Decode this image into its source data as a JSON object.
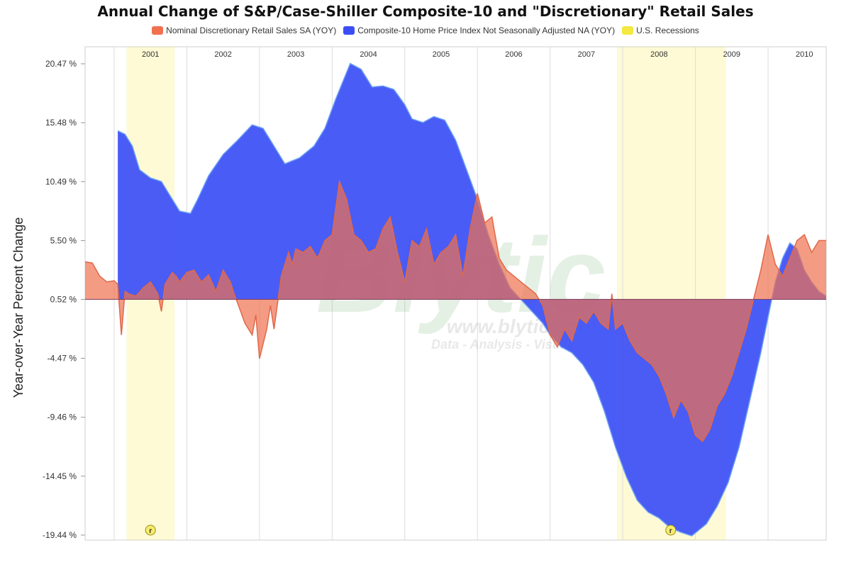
{
  "chart_data": {
    "type": "area",
    "title": "Annual Change of S&P/Case-Shiller Composite-10 and \"Discretionary\" Retail Sales",
    "ylabel": "Year-over-Year Percent Change",
    "ylim": [
      -19.44,
      20.47
    ],
    "ytick_labels": [
      "20.47 %",
      "15.48 %",
      "10.49 %",
      "5.50 %",
      "0.52 %",
      "-4.47 %",
      "-9.46 %",
      "-14.45 %",
      "-19.44 %"
    ],
    "ytick_values": [
      20.47,
      15.48,
      10.49,
      5.5,
      0.52,
      -4.47,
      -9.46,
      -14.45,
      -19.44
    ],
    "baseline": 0.52,
    "xlim": [
      2000.6,
      2010.8
    ],
    "year_labels": [
      "2001",
      "2002",
      "2003",
      "2004",
      "2005",
      "2006",
      "2007",
      "2008",
      "2009",
      "2010"
    ],
    "year_label_positions": [
      2001.5,
      2002.5,
      2003.5,
      2004.5,
      2005.5,
      2006.5,
      2007.5,
      2008.5,
      2009.5,
      2010.5
    ],
    "legend": [
      {
        "label": "Nominal Discretionary Retail Sales SA (YOY)",
        "color": "#f07050"
      },
      {
        "label": "Composite-10 Home Price Index Not Seasonally Adjusted NA (YOY)",
        "color": "#3b4ef5"
      },
      {
        "label": "U.S. Recessions",
        "color": "#f5e840"
      }
    ],
    "recessions": [
      {
        "start": 2001.17,
        "end": 2001.83
      },
      {
        "start": 2007.92,
        "end": 2009.42
      }
    ],
    "recession_markers": [
      {
        "label": "r",
        "x": 2001.5
      },
      {
        "label": "r",
        "x": 2008.66
      }
    ],
    "series": [
      {
        "name": "Nominal Discretionary Retail Sales SA (YOY)",
        "color": "#f07050",
        "x": [
          2000.6,
          2000.7,
          2000.8,
          2000.9,
          2001.0,
          2001.05,
          2001.1,
          2001.15,
          2001.2,
          2001.3,
          2001.4,
          2001.5,
          2001.6,
          2001.65,
          2001.7,
          2001.8,
          2001.85,
          2001.9,
          2002.0,
          2002.1,
          2002.2,
          2002.3,
          2002.4,
          2002.5,
          2002.6,
          2002.65,
          2002.7,
          2002.8,
          2002.9,
          2002.95,
          2003.0,
          2003.1,
          2003.15,
          2003.2,
          2003.3,
          2003.4,
          2003.45,
          2003.5,
          2003.6,
          2003.7,
          2003.8,
          2003.9,
          2004.0,
          2004.1,
          2004.2,
          2004.3,
          2004.4,
          2004.5,
          2004.6,
          2004.7,
          2004.8,
          2004.9,
          2005.0,
          2005.1,
          2005.2,
          2005.3,
          2005.4,
          2005.5,
          2005.6,
          2005.7,
          2005.8,
          2005.9,
          2006.0,
          2006.1,
          2006.2,
          2006.3,
          2006.4,
          2006.5,
          2006.6,
          2006.7,
          2006.8,
          2006.9,
          2007.0,
          2007.1,
          2007.2,
          2007.3,
          2007.4,
          2007.5,
          2007.6,
          2007.7,
          2007.8,
          2007.85,
          2007.9,
          2008.0,
          2008.1,
          2008.2,
          2008.3,
          2008.4,
          2008.5,
          2008.6,
          2008.7,
          2008.8,
          2008.9,
          2009.0,
          2009.1,
          2009.2,
          2009.3,
          2009.4,
          2009.5,
          2009.6,
          2009.7,
          2009.8,
          2009.9,
          2010.0,
          2010.1,
          2010.2,
          2010.3,
          2010.4,
          2010.5,
          2010.6,
          2010.7,
          2010.8
        ],
        "values": [
          3.7,
          3.6,
          2.5,
          2.0,
          2.1,
          1.8,
          -2.5,
          1.2,
          1.0,
          0.8,
          1.5,
          2.0,
          1.0,
          -0.5,
          1.8,
          2.8,
          2.5,
          2.0,
          2.8,
          3.0,
          2.0,
          2.6,
          1.2,
          3.0,
          2.0,
          1.0,
          0.2,
          -1.5,
          -2.5,
          -0.8,
          -4.5,
          -2.0,
          0.0,
          -2.0,
          2.5,
          4.5,
          3.5,
          4.8,
          4.5,
          5.0,
          4.0,
          5.5,
          6.0,
          10.5,
          9.0,
          6.0,
          5.5,
          4.5,
          4.8,
          6.5,
          7.5,
          4.5,
          2.0,
          5.5,
          5.0,
          6.5,
          3.5,
          4.5,
          5.0,
          6.0,
          2.5,
          6.5,
          9.5,
          7.0,
          7.5,
          4.0,
          3.0,
          2.5,
          2.0,
          1.5,
          1.0,
          0.0,
          -2.5,
          -3.5,
          -2.0,
          -3.0,
          -1.0,
          -1.5,
          -0.5,
          -1.5,
          -2.0,
          1.0,
          -2.0,
          -1.5,
          -3.0,
          -4.0,
          -4.5,
          -5.0,
          -6.0,
          -7.5,
          -9.5,
          -8.0,
          -9.0,
          -11.0,
          -11.5,
          -10.5,
          -8.5,
          -7.5,
          -6.0,
          -4.0,
          -2.0,
          0.5,
          3.0,
          6.0,
          3.5,
          2.5,
          4.0,
          5.5,
          6.0,
          4.5,
          5.5,
          5.5
        ]
      },
      {
        "name": "Composite-10 Home Price Index Not Seasonally Adjusted NA (YOY)",
        "color": "#3b4ef5",
        "x": [
          2001.05,
          2001.15,
          2001.25,
          2001.35,
          2001.5,
          2001.65,
          2001.75,
          2001.9,
          2002.05,
          2002.15,
          2002.3,
          2002.5,
          2002.7,
          2002.9,
          2003.05,
          2003.2,
          2003.35,
          2003.55,
          2003.75,
          2003.9,
          2004.05,
          2004.15,
          2004.25,
          2004.4,
          2004.55,
          2004.7,
          2004.85,
          2005.0,
          2005.1,
          2005.25,
          2005.4,
          2005.55,
          2005.7,
          2005.85,
          2006.0,
          2006.15,
          2006.3,
          2006.45,
          2006.6,
          2006.75,
          2006.9,
          2007.0,
          2007.15,
          2007.3,
          2007.45,
          2007.6,
          2007.75,
          2007.9,
          2008.05,
          2008.2,
          2008.35,
          2008.5,
          2008.65,
          2008.8,
          2008.95,
          2009.05,
          2009.15,
          2009.3,
          2009.45,
          2009.6,
          2009.75,
          2009.9,
          2010.0,
          2010.1,
          2010.2,
          2010.3,
          2010.4,
          2010.5,
          2010.6,
          2010.7,
          2010.8
        ],
        "values": [
          14.8,
          14.5,
          13.5,
          11.5,
          10.8,
          10.5,
          9.5,
          8.0,
          7.8,
          9.0,
          11.0,
          12.8,
          14.0,
          15.3,
          15.0,
          13.5,
          12.0,
          12.5,
          13.5,
          15.0,
          17.5,
          19.0,
          20.5,
          20.0,
          18.5,
          18.6,
          18.3,
          17.0,
          15.8,
          15.5,
          16.0,
          15.7,
          14.0,
          11.5,
          9.0,
          6.0,
          3.5,
          1.5,
          0.5,
          -0.5,
          -1.5,
          -2.5,
          -3.5,
          -4.0,
          -5.0,
          -6.5,
          -9.0,
          -12.0,
          -14.5,
          -16.5,
          -17.5,
          -18.0,
          -18.8,
          -19.2,
          -19.5,
          -19.0,
          -18.5,
          -17.0,
          -15.0,
          -12.0,
          -8.0,
          -4.0,
          -1.0,
          2.0,
          4.0,
          5.3,
          4.8,
          3.0,
          2.0,
          1.2,
          0.8
        ]
      }
    ],
    "watermark": {
      "logo": "Blytic",
      "url": "www.blytic.com",
      "tagline": "Data - Analysis - Visualization"
    }
  }
}
